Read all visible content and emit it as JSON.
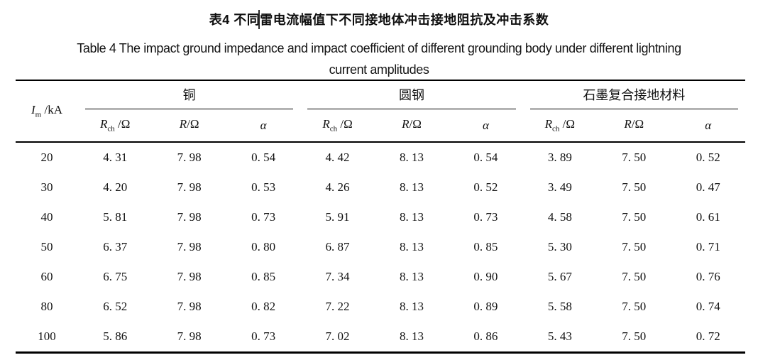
{
  "title": {
    "zh": "表4  不同雷电流幅值下不同接地体冲击接地阻抗及冲击系数",
    "en_line1": "Table 4  The impact ground impedance and impact coefficient of different grounding body under different lightning",
    "en_line2": "current amplitudes"
  },
  "table": {
    "row_header": {
      "sym": "I",
      "sub": "m",
      "unit": " /kA"
    },
    "groups": [
      {
        "label": "铜"
      },
      {
        "label": "圆钢"
      },
      {
        "label": "石墨复合接地材料"
      }
    ],
    "subheaders": [
      {
        "sym": "R",
        "sub": "ch",
        "unit": " /Ω"
      },
      {
        "sym": "R",
        "sub": "",
        "unit": "/Ω"
      },
      {
        "sym": "α",
        "sub": "",
        "unit": ""
      }
    ],
    "rows": [
      {
        "im": "20",
        "values": [
          "4. 31",
          "7. 98",
          "0. 54",
          "4. 42",
          "8. 13",
          "0. 54",
          "3. 89",
          "7. 50",
          "0. 52"
        ]
      },
      {
        "im": "30",
        "values": [
          "4. 20",
          "7. 98",
          "0. 53",
          "4. 26",
          "8. 13",
          "0. 52",
          "3. 49",
          "7. 50",
          "0. 47"
        ]
      },
      {
        "im": "40",
        "values": [
          "5. 81",
          "7. 98",
          "0. 73",
          "5. 91",
          "8. 13",
          "0. 73",
          "4. 58",
          "7. 50",
          "0. 61"
        ]
      },
      {
        "im": "50",
        "values": [
          "6. 37",
          "7. 98",
          "0. 80",
          "6. 87",
          "8. 13",
          "0. 85",
          "5. 30",
          "7. 50",
          "0. 71"
        ]
      },
      {
        "im": "60",
        "values": [
          "6. 75",
          "7. 98",
          "0. 85",
          "7. 34",
          "8. 13",
          "0. 90",
          "5. 67",
          "7. 50",
          "0. 76"
        ]
      },
      {
        "im": "80",
        "values": [
          "6. 52",
          "7. 98",
          "0. 82",
          "7. 22",
          "8. 13",
          "0. 89",
          "5. 58",
          "7. 50",
          "0. 74"
        ]
      },
      {
        "im": "100",
        "values": [
          "5. 86",
          "7. 98",
          "0. 73",
          "7. 02",
          "8. 13",
          "0. 86",
          "5. 43",
          "7. 50",
          "0. 72"
        ]
      }
    ]
  },
  "colors": {
    "rule": "#000000",
    "text": "#111111",
    "background": "#ffffff"
  }
}
